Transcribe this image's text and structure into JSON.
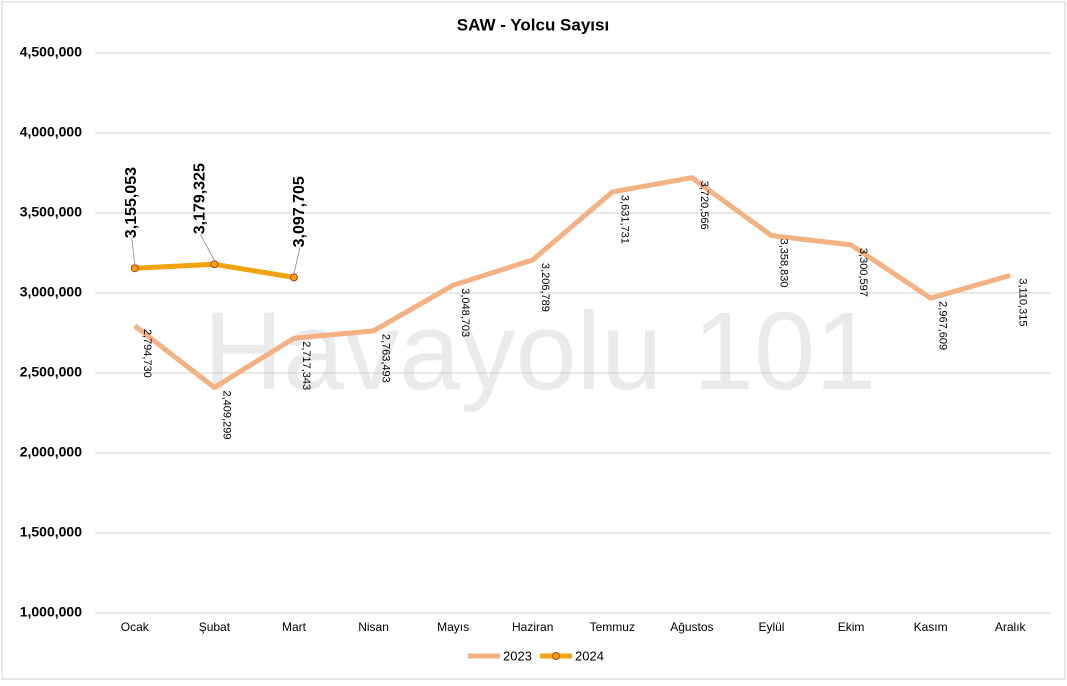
{
  "chart_data": {
    "type": "line",
    "title": "SAW - Yolcu Sayısı",
    "annotations": [
      "Havayolu 101"
    ],
    "categories": [
      "Ocak",
      "Şubat",
      "Mart",
      "Nisan",
      "Mayıs",
      "Haziran",
      "Temmuz",
      "Ağustos",
      "Eylül",
      "Ekim",
      "Kasım",
      "Aralık"
    ],
    "series": [
      {
        "name": "2023",
        "color": "#f4b183",
        "values": [
          2794730,
          2409299,
          2717343,
          2763493,
          3048703,
          3206789,
          3631731,
          3720566,
          3358830,
          3300597,
          2967609,
          3110315
        ],
        "value_labels": [
          "2,794,730",
          "2,409,299",
          "2,717,343",
          "2,763,493",
          "3,048,703",
          "3,206,789",
          "3,631,731",
          "3,720,566",
          "3,358,830",
          "3,300,597",
          "2,967,609",
          "3,110,315"
        ]
      },
      {
        "name": "2024",
        "color": "#f0a30a",
        "marker_edge": "#c0392b",
        "values": [
          3155053,
          3179325,
          3097705,
          null,
          null,
          null,
          null,
          null,
          null,
          null,
          null,
          null
        ],
        "value_labels": [
          "3,155,053",
          "3,179,325",
          "3,097,705",
          null,
          null,
          null,
          null,
          null,
          null,
          null,
          null,
          null
        ]
      }
    ],
    "ylim": [
      1000000,
      4500000
    ],
    "yticks": [
      {
        "value": 1000000,
        "label": "1,000,000"
      },
      {
        "value": 1500000,
        "label": "1,500,000"
      },
      {
        "value": 2000000,
        "label": "2,000,000"
      },
      {
        "value": 2500000,
        "label": "2,500,000"
      },
      {
        "value": 3000000,
        "label": "3,000,000"
      },
      {
        "value": 3500000,
        "label": "3,500,000"
      },
      {
        "value": 4000000,
        "label": "4,000,000"
      },
      {
        "value": 4500000,
        "label": "4,500,000"
      }
    ],
    "grid": true,
    "legend": "bottom"
  }
}
